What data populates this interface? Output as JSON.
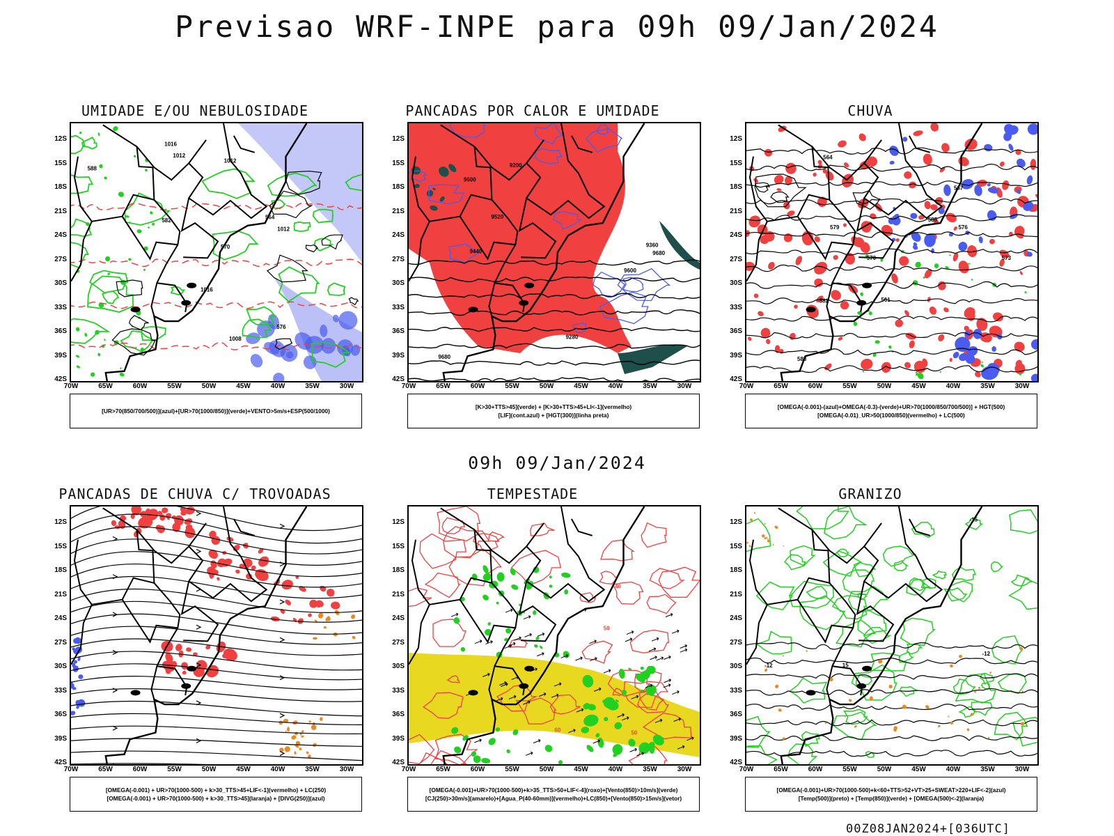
{
  "title": "Previsao WRF-INPE  para 09h 09/Jan/2024",
  "mid_title": "09h 09/Jan/2024",
  "footer": "00Z08JAN2024+[036UTC]",
  "lat_labels": [
    "12S",
    "15S",
    "18S",
    "21S",
    "24S",
    "27S",
    "30S",
    "33S",
    "36S",
    "39S",
    "42S"
  ],
  "lon_labels": [
    "70W",
    "65W",
    "60W",
    "55W",
    "50W",
    "45W",
    "40W",
    "35W",
    "30W"
  ],
  "colors": {
    "blue": "#4a5cf0",
    "lightblue": "#aab0f5",
    "green": "#22d022",
    "red": "#f04040",
    "yellow": "#e8d820",
    "orange": "#e88a20",
    "darkteal": "#1f4f4a",
    "black": "#000000"
  },
  "panels": [
    {
      "id": "umidade",
      "title": "UMIDADE E/OU NEBULOSIDADE",
      "legend": [
        "[UR>70(850/700/500)](azul)+[UR>70(1000/850)](verde)+VENTO>5m/s+ESP(500/1000)"
      ],
      "contour_labels": [
        "1016",
        "1012",
        "1008",
        "1012",
        "1016",
        "1012",
        "576",
        "582",
        "570",
        "588",
        "564"
      ]
    },
    {
      "id": "pancadas-calor",
      "title": "PANCADAS POR CALOR E UMIDADE",
      "legend": [
        "[K>30+TTS>45](verde) + [K>30+TTS>45+LI<-1](vermelho)",
        "[LIF](cont.azul) + [HGT(300)](linha preta)"
      ],
      "contour_labels": [
        "9600",
        "9680",
        "9520",
        "9440",
        "9360",
        "9280",
        "9200",
        "9680",
        "9600"
      ]
    },
    {
      "id": "chuva",
      "title": "CHUVA",
      "legend": [
        "[OMEGA(-0.001)-(azul)+OMEGA(-0.3)-(verde)+UR>70(1000/850/700/500)] + HGT(500)",
        "[OMEGA(-0.01)_UR>50(1000/850)(vermelho) + LC(500)"
      ],
      "contour_labels": [
        "588",
        "585",
        "582",
        "579",
        "576",
        "573",
        "570",
        "567",
        "564",
        "561"
      ]
    },
    {
      "id": "pancadas-trovoadas",
      "title": "PANCADAS DE CHUVA C/ TROVOADAS",
      "legend": [
        "[OMEGA(-0.001) + UR>70(1000-500) + k>30_TTS>45+LIF<-1](vermelho) + LC(250)",
        "[OMEGA(-0.001) + UR>70(1000-500) + k>30_TTS>45](laranja) + [DIVG(250)](azul)"
      ],
      "contour_labels": []
    },
    {
      "id": "tempestade",
      "title": "TEMPESTADE",
      "legend": [
        "[OMEGA(-0.001)+UR>70(1000-500)+k>35_TTS>50+LIF<-4](roxo)+[Vento(850)>10m/s](verde)",
        "[CJ(250)>30m/s](amarelo)+[Agua_P(40-60mm)](vermelho)+LC(850)+[Vento(850)>15m/s](vetor)"
      ],
      "contour_labels": [
        "40",
        "50",
        "60",
        "50"
      ]
    },
    {
      "id": "granizo",
      "title": "GRANIZO",
      "legend": [
        "[OMEGA(-0.001)+UR>70(1000-500)+k<60+TTS>52+VT>25+SWEAT>220+LIF<-2](azul)",
        "[Temp(500)](preto) + [Temp(850)](verde) + [OMEGA(500)<-2](laranja)"
      ],
      "contour_labels": [
        "-12",
        "-15",
        "-12",
        "15"
      ]
    }
  ]
}
